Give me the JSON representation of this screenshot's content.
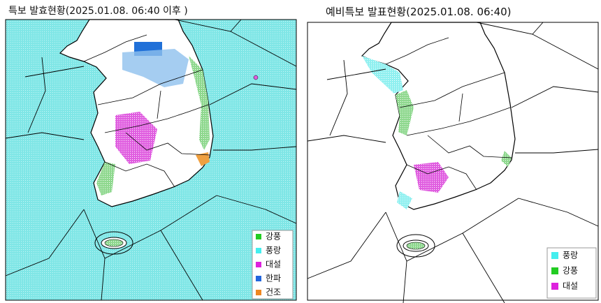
{
  "left_panel": {
    "title": "특보 발효현황(2025.01.08.  06:40 이후 )",
    "legend": [
      {
        "label": "강풍",
        "color": "#22cc22"
      },
      {
        "label": "풍랑",
        "color": "#44eeee"
      },
      {
        "label": "대설",
        "color": "#dd22dd"
      },
      {
        "label": "한파",
        "color": "#2266dd"
      },
      {
        "label": "건조",
        "color": "#ee8822"
      }
    ]
  },
  "right_panel": {
    "title": "예비특보 발표현황(2025.01.08.  06:40)",
    "legend": [
      {
        "label": "풍랑",
        "color": "#44eeee"
      },
      {
        "label": "강풍",
        "color": "#22cc22"
      },
      {
        "label": "대설",
        "color": "#dd22dd"
      }
    ]
  }
}
